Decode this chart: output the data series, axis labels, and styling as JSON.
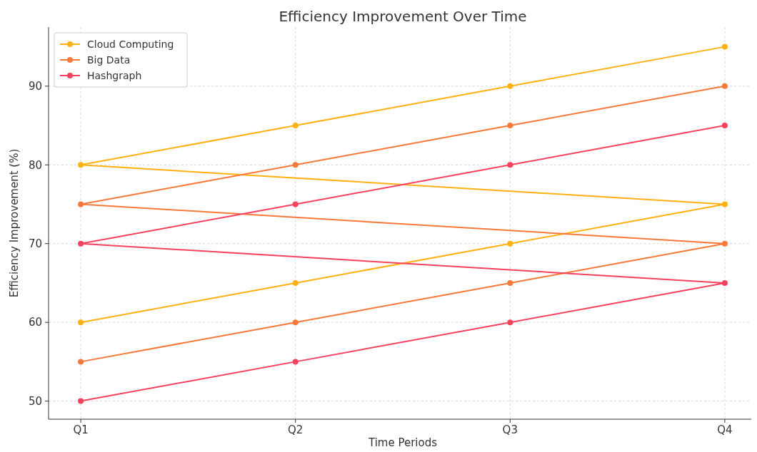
{
  "chart_data": {
    "type": "line",
    "title": "Efficiency Improvement Over Time",
    "xlabel": "Time Periods",
    "ylabel": "Efficiency Improvement (%)",
    "categories": [
      "Q1",
      "Q2",
      "Q3",
      "Q4"
    ],
    "series": [
      {
        "name": "Cloud Computing",
        "color": "#ffb114",
        "x": [
          "Q1",
          "Q2",
          "Q3",
          "Q4",
          "Q1",
          "Q2",
          "Q3",
          "Q4"
        ],
        "values": [
          60,
          65,
          70,
          75,
          80,
          85,
          90,
          95
        ]
      },
      {
        "name": "Big Data",
        "color": "#f7793a",
        "x": [
          "Q1",
          "Q2",
          "Q3",
          "Q4",
          "Q1",
          "Q2",
          "Q3",
          "Q4"
        ],
        "values": [
          55,
          60,
          65,
          70,
          75,
          80,
          85,
          90
        ]
      },
      {
        "name": "Hashgraph",
        "color": "#f5425f",
        "x": [
          "Q1",
          "Q2",
          "Q3",
          "Q4",
          "Q1",
          "Q2",
          "Q3",
          "Q4"
        ],
        "values": [
          50,
          55,
          60,
          65,
          70,
          75,
          80,
          85
        ]
      }
    ],
    "ylim": [
      47.7,
      97.5
    ],
    "yticks": [
      50,
      60,
      70,
      80,
      90
    ],
    "grid": true,
    "legend": "top left",
    "marker": "circle",
    "line_style": "solid"
  }
}
